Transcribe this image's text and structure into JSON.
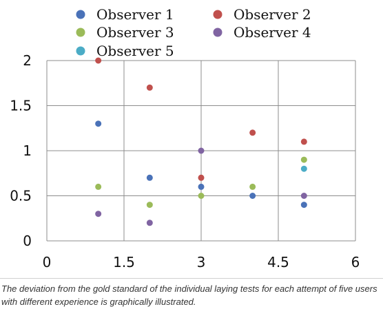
{
  "chart_data": {
    "type": "scatter",
    "title": "",
    "xlabel": "",
    "ylabel": "",
    "xlim": [
      0,
      6
    ],
    "ylim": [
      0,
      2
    ],
    "x_ticks": [
      "0",
      "1.5",
      "3",
      "4.5",
      "6"
    ],
    "y_ticks": [
      "0",
      "0.5",
      "1",
      "1.5",
      "2"
    ],
    "grid": true,
    "legend_position": "top",
    "series": [
      {
        "name": "Observer 1",
        "color": "#4a72b8",
        "points": [
          [
            1,
            1.3
          ],
          [
            2,
            0.7
          ],
          [
            3,
            0.6
          ],
          [
            4,
            0.5
          ],
          [
            5,
            0.4
          ]
        ]
      },
      {
        "name": "Observer 2",
        "color": "#c0504d",
        "points": [
          [
            1,
            2.0
          ],
          [
            2,
            1.7
          ],
          [
            3,
            0.7
          ],
          [
            4,
            1.2
          ],
          [
            5,
            1.1
          ]
        ]
      },
      {
        "name": "Observer 3",
        "color": "#9bbb59",
        "points": [
          [
            1,
            0.6
          ],
          [
            2,
            0.4
          ],
          [
            3,
            0.5
          ],
          [
            4,
            0.6
          ],
          [
            5,
            0.9
          ]
        ]
      },
      {
        "name": "Observer 4",
        "color": "#8064a2",
        "points": [
          [
            1,
            0.3
          ],
          [
            2,
            0.2
          ],
          [
            3,
            1.0
          ],
          [
            5,
            0.5
          ]
        ]
      },
      {
        "name": "Observer 5",
        "color": "#4bacc6",
        "points": [
          [
            5,
            0.8
          ]
        ]
      }
    ]
  },
  "caption": "The deviation from the gold standard of the individual laying tests for each attempt of five users with different experience is graphically illustrated."
}
